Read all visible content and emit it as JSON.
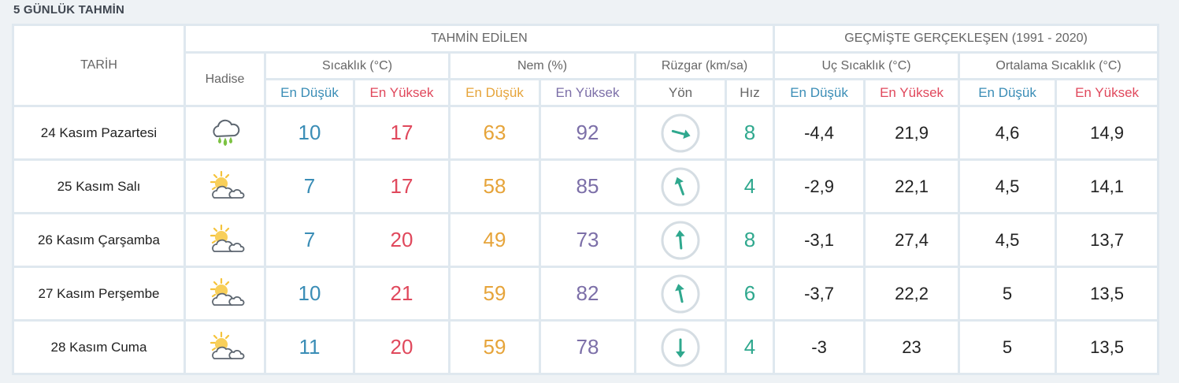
{
  "header": {
    "title": "5 GÜNLÜK TAHMİN"
  },
  "table": {
    "groups": {
      "date": "TARİH",
      "forecast": "TAHMİN EDİLEN",
      "history": "GEÇMİŞTE GERÇEKLEŞEN (1991 - 2020)",
      "event": "Hadise",
      "temperature": "Sıcaklık (°C)",
      "humidity": "Nem (%)",
      "wind": "Rüzgar (km/sa)",
      "extreme_temp": "Uç Sıcaklık (°C)",
      "avg_temp": "Ortalama Sıcaklık (°C)"
    },
    "subheaders": [
      "En Düşük",
      "En Yüksek",
      "En Düşük",
      "En Yüksek",
      "Yön",
      "Hız",
      "En Düşük",
      "En Yüksek",
      "En Düşük",
      "En Yüksek"
    ],
    "rows": [
      [
        "24 Kasım Pazartesi",
        "10",
        "17",
        "63",
        "92",
        "8",
        "-4,4",
        "21,9",
        "4,6",
        "14,9"
      ],
      [
        "25 Kasım Salı",
        "7",
        "17",
        "58",
        "85",
        "4",
        "-2,9",
        "22,1",
        "4,5",
        "14,1"
      ],
      [
        "26 Kasım Çarşamba",
        "7",
        "20",
        "49",
        "73",
        "8",
        "-3,1",
        "27,4",
        "4,5",
        "13,7"
      ],
      [
        "27 Kasım Perşembe",
        "10",
        "21",
        "59",
        "82",
        "6",
        "-3,7",
        "22,2",
        "5",
        "13,5"
      ],
      [
        "28 Kasım Cuma",
        "11",
        "20",
        "59",
        "78",
        "4",
        "-3",
        "23",
        "5",
        "13,5"
      ]
    ]
  }
}
